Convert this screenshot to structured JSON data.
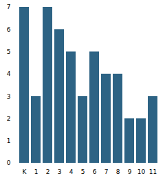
{
  "chart_data": {
    "type": "bar",
    "categories": [
      "K",
      "1",
      "2",
      "3",
      "4",
      "5",
      "6",
      "7",
      "8",
      "9",
      "10",
      "11"
    ],
    "values": [
      7,
      3,
      7,
      6,
      5,
      3,
      5,
      4,
      4,
      2,
      2,
      3
    ],
    "color": "#2d6384",
    "ylim": [
      0,
      7
    ],
    "yticks": [
      0,
      1,
      2,
      3,
      4,
      5,
      6,
      7
    ],
    "grid": false
  }
}
